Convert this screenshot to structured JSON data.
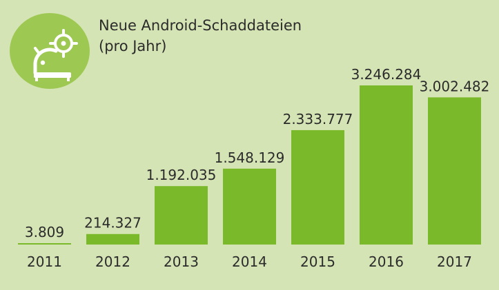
{
  "colors": {
    "background": "#d5e4b4",
    "bar": "#7ab929",
    "logo_circle": "#9dc852",
    "logo_glyph": "#ffffff",
    "text": "#2b2b2b"
  },
  "icon": "android-malware-target-icon",
  "chart_data": {
    "type": "bar",
    "title": "Neue Android-Schaddateien",
    "subtitle": "(pro Jahr)",
    "categories": [
      "2011",
      "2012",
      "2013",
      "2014",
      "2015",
      "2016",
      "2017"
    ],
    "values": [
      3809,
      214327,
      1192035,
      1548129,
      2333777,
      3246284,
      3002482
    ],
    "value_labels": [
      "3.809",
      "214.327",
      "1.192.035",
      "1.548.129",
      "2.333.777",
      "3.246.284",
      "3.002.482"
    ],
    "grid": false,
    "legend": "none"
  }
}
